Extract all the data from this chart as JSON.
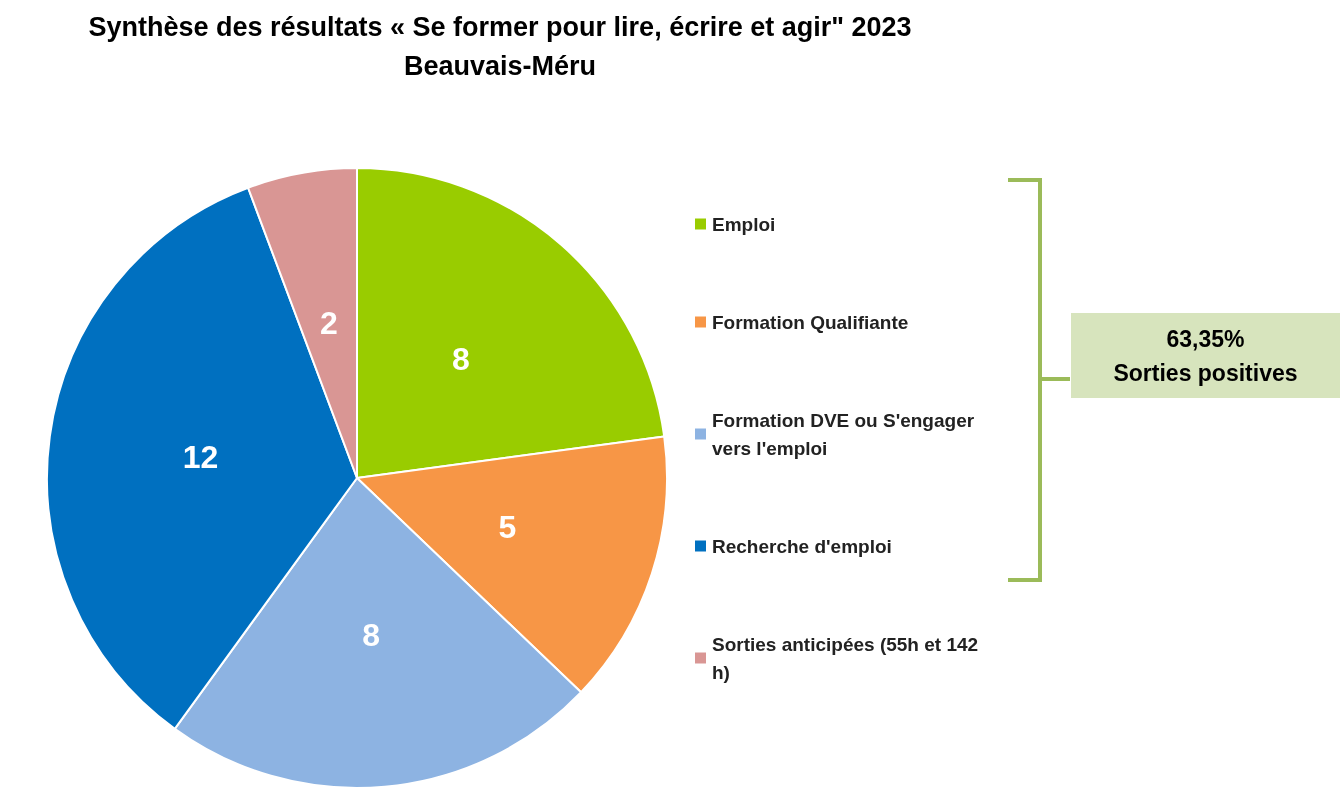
{
  "chart_data": {
    "type": "pie",
    "title": "Synthèse des résultats « Se former pour lire, écrire et agir\" 2023",
    "subtitle": "Beauvais-Méru",
    "categories": [
      "Emploi",
      "Formation Qualifiante",
      "Formation DVE ou S'engager vers l'emploi",
      "Recherche d'emploi",
      "Sorties anticipées (55h et 142 h)"
    ],
    "values": [
      8,
      5,
      8,
      12,
      2
    ],
    "colors": [
      "#99cc00",
      "#f79646",
      "#8db3e2",
      "#0070c0",
      "#d99694"
    ],
    "data_labels": true,
    "legend": "right",
    "annotations": [
      "63,35%\nSorties positives"
    ]
  }
}
